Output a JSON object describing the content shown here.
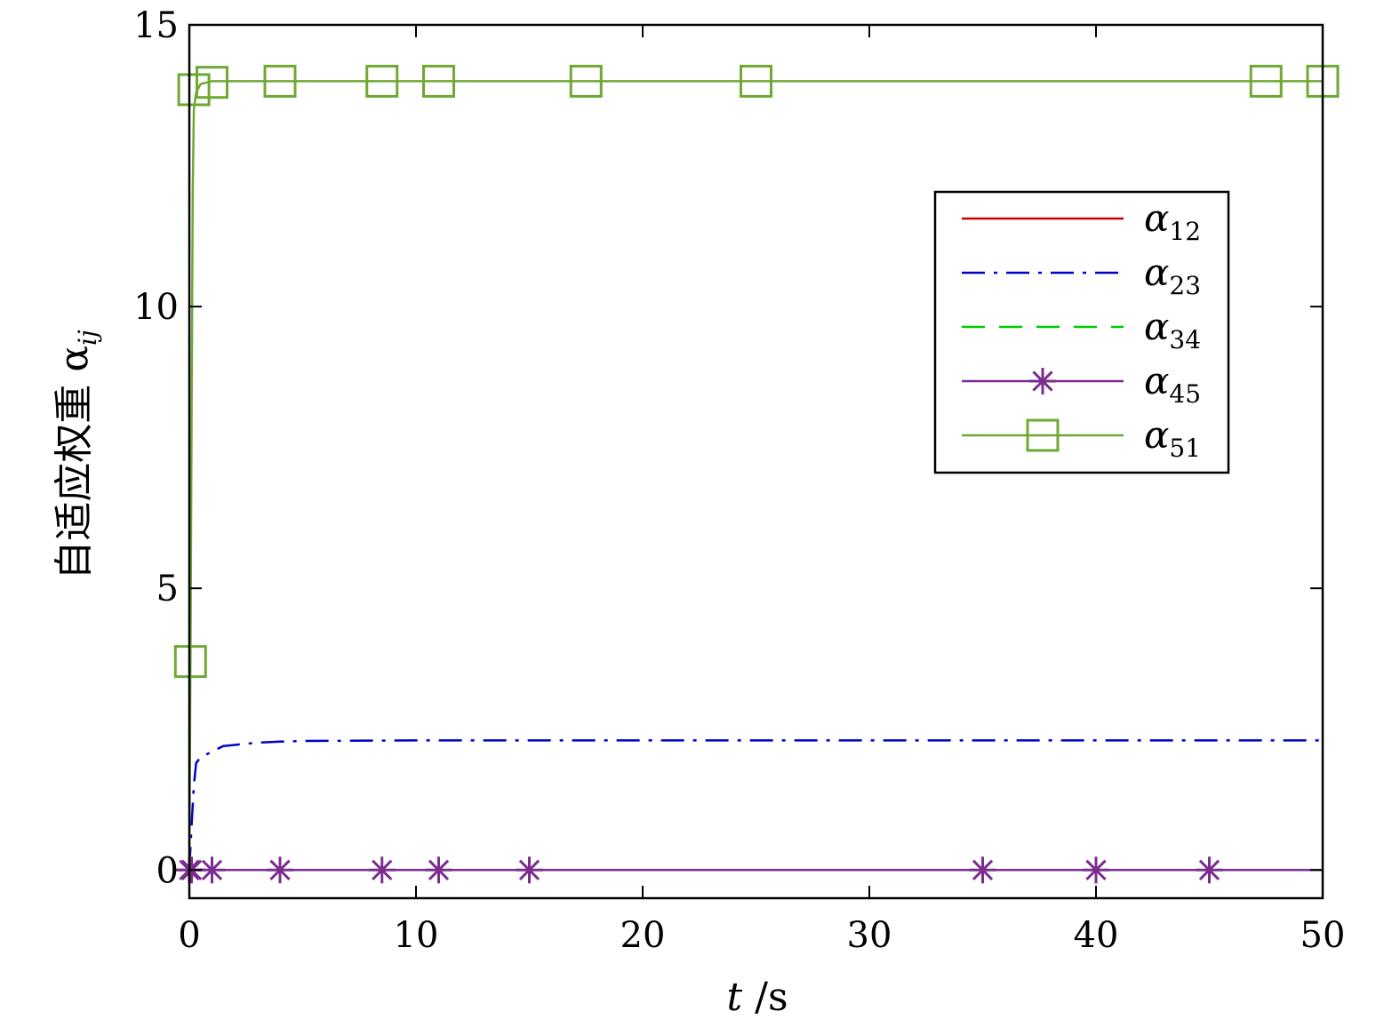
{
  "chart_data": {
    "type": "line",
    "xlabel": "t /s",
    "ylabel": "自适应权重 α",
    "ylabel_sub": "ij",
    "xlim": [
      0,
      50
    ],
    "ylim": [
      -0.5,
      15
    ],
    "xticks": [
      0,
      10,
      20,
      30,
      40,
      50
    ],
    "yticks": [
      0,
      5,
      10,
      15
    ],
    "grid": false,
    "legend_position": "upper-right",
    "series": [
      {
        "name": "α",
        "sub": "12",
        "color": "#cc0000",
        "dash": "none",
        "marker": "none",
        "x": [
          0,
          50
        ],
        "y": [
          0,
          0
        ]
      },
      {
        "name": "α",
        "sub": "23",
        "color": "#0000cc",
        "dash": "dashdot",
        "marker": "none",
        "x": [
          0,
          0.1,
          0.2,
          0.3,
          0.5,
          1,
          1.5,
          2,
          3,
          4,
          5,
          10,
          20,
          30,
          40,
          50
        ],
        "y": [
          0,
          0.8,
          1.5,
          1.9,
          2.0,
          2.1,
          2.2,
          2.22,
          2.26,
          2.28,
          2.29,
          2.3,
          2.3,
          2.3,
          2.3,
          2.3
        ]
      },
      {
        "name": "α",
        "sub": "34",
        "color": "#00cc00",
        "dash": "dashed",
        "marker": "none",
        "x": [
          0,
          50
        ],
        "y": [
          0,
          0
        ]
      },
      {
        "name": "α",
        "sub": "45",
        "color": "#7b2d8e",
        "dash": "none",
        "marker": "asterisk",
        "x": [
          0,
          50
        ],
        "y": [
          0,
          0
        ],
        "marker_x": [
          0,
          0.1,
          1,
          4,
          8.5,
          11,
          15,
          35,
          40,
          45
        ],
        "marker_y": [
          0,
          0,
          0,
          0,
          0,
          0,
          0,
          0,
          0,
          0
        ]
      },
      {
        "name": "α",
        "sub": "51",
        "color": "#6fa832",
        "dash": "none",
        "marker": "square",
        "x": [
          0,
          0.05,
          0.1,
          0.15,
          0.2,
          0.3,
          0.5,
          1,
          4,
          50
        ],
        "y": [
          0,
          3.7,
          8,
          12,
          13.5,
          13.8,
          13.95,
          14,
          14,
          14
        ],
        "marker_x": [
          0.05,
          0.2,
          1,
          4,
          8.5,
          11,
          17.5,
          25,
          47.5,
          50
        ],
        "marker_y": [
          3.7,
          13.85,
          13.98,
          14,
          14,
          14,
          14,
          14,
          14,
          14
        ]
      }
    ]
  }
}
